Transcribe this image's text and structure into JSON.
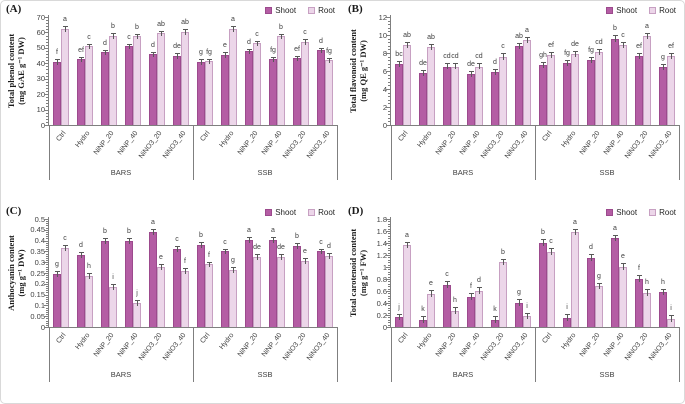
{
  "figure": {
    "background": "#ffffff",
    "border_color": "#d9d9d9"
  },
  "colors": {
    "shoot": "#b45da4",
    "shoot_border": "#9c4a8d",
    "root": "#ecd6e9",
    "root_border": "#c7a0c2",
    "axis": "#7f7f7f",
    "error": "#595959",
    "text": "#3f3f3f"
  },
  "legend": {
    "items": [
      {
        "label": "Shoot",
        "color_key": "shoot"
      },
      {
        "label": "Root",
        "color_key": "root"
      }
    ]
  },
  "groups": [
    "BARS",
    "SSB"
  ],
  "categories": [
    "Ctrl",
    "Hydro",
    "NiNP_20",
    "NiNP_40",
    "NiNO3_20",
    "NiNO3_40"
  ],
  "chart_data": [
    {
      "type": "bar",
      "panel_label": "(A)",
      "ylabel_line1": "Total phenol content",
      "ylabel_line2": "(mg GAE g⁻¹ DW)",
      "ylim": [
        0,
        70
      ],
      "ytick_values": [
        0,
        10,
        20,
        30,
        40,
        50,
        60,
        70
      ],
      "ytick_labels": [
        "0",
        "10",
        "20",
        "30",
        "40",
        "50",
        "60",
        "70"
      ],
      "err": 1.5,
      "series": [
        {
          "name": "Shoot",
          "groups": [
            {
              "group": "BARS",
              "values": [
                41,
                42.5,
                47,
                51,
                46,
                45
              ],
              "letters": [
                "f",
                "ef",
                "d",
                "c",
                "d",
                "de"
              ]
            },
            {
              "group": "SSB",
              "values": [
                41,
                45.5,
                48,
                42.5,
                43.5,
                48.5
              ],
              "letters": [
                "g",
                "e",
                "d",
                "fg",
                "ef",
                "d"
              ]
            }
          ]
        },
        {
          "name": "Root",
          "groups": [
            {
              "group": "BARS",
              "values": [
                62.5,
                51,
                58,
                57.5,
                59.5,
                60.5
              ],
              "letters": [
                "a",
                "c",
                "b",
                "b",
                "ab",
                "ab"
              ]
            },
            {
              "group": "SSB",
              "values": [
                41.5,
                62.5,
                53,
                57.5,
                54,
                42
              ],
              "letters": [
                "fg",
                "a",
                "c",
                "b",
                "c",
                "fg"
              ]
            }
          ]
        }
      ]
    },
    {
      "type": "bar",
      "panel_label": "(B)",
      "ylabel_line1": "Total flavonoid content",
      "ylabel_line2": "(mg QE g⁻¹ DW)",
      "ylim": [
        0,
        12
      ],
      "ytick_values": [
        0,
        2,
        4,
        6,
        8,
        10,
        12
      ],
      "ytick_labels": [
        "0",
        "2",
        "4",
        "6",
        "8",
        "10",
        "12"
      ],
      "err": 0.35,
      "series": [
        {
          "name": "Shoot",
          "groups": [
            {
              "group": "BARS",
              "values": [
                6.8,
                5.8,
                6.5,
                5.7,
                5.9,
                8.8
              ],
              "letters": [
                "bc",
                "de",
                "cd",
                "de",
                "d",
                "ab"
              ]
            },
            {
              "group": "SSB",
              "values": [
                6.7,
                6.9,
                7.2,
                9.6,
                7.7,
                6.4
              ],
              "letters": [
                "gh",
                "fg",
                "fg",
                "b",
                "ef",
                "g"
              ]
            }
          ]
        },
        {
          "name": "Root",
          "groups": [
            {
              "group": "BARS",
              "values": [
                8.9,
                8.7,
                6.5,
                6.5,
                7.6,
                9.4
              ],
              "letters": [
                "ab",
                "ab",
                "cd",
                "cd",
                "c",
                "a"
              ]
            },
            {
              "group": "SSB",
              "values": [
                7.8,
                7.9,
                8.1,
                8.9,
                9.9,
                7.7
              ],
              "letters": [
                "ef",
                "de",
                "cd",
                "c",
                "a",
                "ef"
              ]
            }
          ]
        }
      ]
    },
    {
      "type": "bar",
      "panel_label": "(C)",
      "ylabel_line1": "Anthocyanin content",
      "ylabel_line2": "(mg g⁻¹ DW)",
      "ylim": [
        0,
        0.5
      ],
      "ytick_values": [
        0,
        0.05,
        0.1,
        0.15,
        0.2,
        0.25,
        0.3,
        0.35,
        0.4,
        0.45,
        0.5
      ],
      "ytick_labels": [
        "0",
        "0.05",
        "0.1",
        "0.15",
        "0.2",
        "0.25",
        "0.3",
        "0.35",
        "0.4",
        "0.45",
        "0.5"
      ],
      "err": 0.013,
      "series": [
        {
          "name": "Shoot",
          "groups": [
            {
              "group": "BARS",
              "values": [
                0.245,
                0.335,
                0.4,
                0.4,
                0.44,
                0.36
              ],
              "letters": [
                "g",
                "d",
                "b",
                "b",
                "a",
                "c"
              ]
            },
            {
              "group": "SSB",
              "values": [
                0.38,
                0.35,
                0.405,
                0.405,
                0.375,
                0.35
              ],
              "letters": [
                "b",
                "c",
                "a",
                "a",
                "b",
                "c"
              ]
            }
          ]
        },
        {
          "name": "Root",
          "groups": [
            {
              "group": "BARS",
              "values": [
                0.365,
                0.235,
                0.185,
                0.11,
                0.28,
                0.26
              ],
              "letters": [
                "c",
                "h",
                "i",
                "j",
                "e",
                "f"
              ]
            },
            {
              "group": "SSB",
              "values": [
                0.29,
                0.265,
                0.325,
                0.325,
                0.305,
                0.33
              ],
              "letters": [
                "f",
                "g",
                "de",
                "de",
                "e",
                "d"
              ]
            }
          ]
        }
      ]
    },
    {
      "type": "bar",
      "panel_label": "(D)",
      "ylabel_line1": "Total carotenoid content",
      "ylabel_line2": "(mg g⁻¹ FW)",
      "ylim": [
        0,
        1.8
      ],
      "ytick_values": [
        0,
        0.2,
        0.4,
        0.6,
        0.8,
        1,
        1.2,
        1.4,
        1.6,
        1.8
      ],
      "ytick_labels": [
        "0",
        "0.2",
        "0.4",
        "0.6",
        "0.8",
        "1",
        "1.2",
        "1.4",
        "1.6",
        "1.8"
      ],
      "err": 0.06,
      "series": [
        {
          "name": "Shoot",
          "groups": [
            {
              "group": "BARS",
              "values": [
                0.16,
                0.12,
                0.7,
                0.5,
                0.12,
                0.4
              ],
              "letters": [
                "j",
                "k",
                "c",
                "f",
                "k",
                "g"
              ]
            },
            {
              "group": "SSB",
              "values": [
                1.4,
                0.15,
                1.15,
                1.48,
                0.8,
                0.58
              ],
              "letters": [
                "b",
                "i",
                "d",
                "a",
                "f",
                "h"
              ]
            }
          ]
        },
        {
          "name": "Root",
          "groups": [
            {
              "group": "BARS",
              "values": [
                1.36,
                0.55,
                0.27,
                0.6,
                1.08,
                0.18
              ],
              "letters": [
                "a",
                "e",
                "h",
                "d",
                "b",
                "i"
              ]
            },
            {
              "group": "SSB",
              "values": [
                1.25,
                1.58,
                0.68,
                1.0,
                0.57,
                0.14
              ],
              "letters": [
                "c",
                "a",
                "g",
                "e",
                "h",
                "i"
              ]
            }
          ]
        }
      ]
    }
  ]
}
